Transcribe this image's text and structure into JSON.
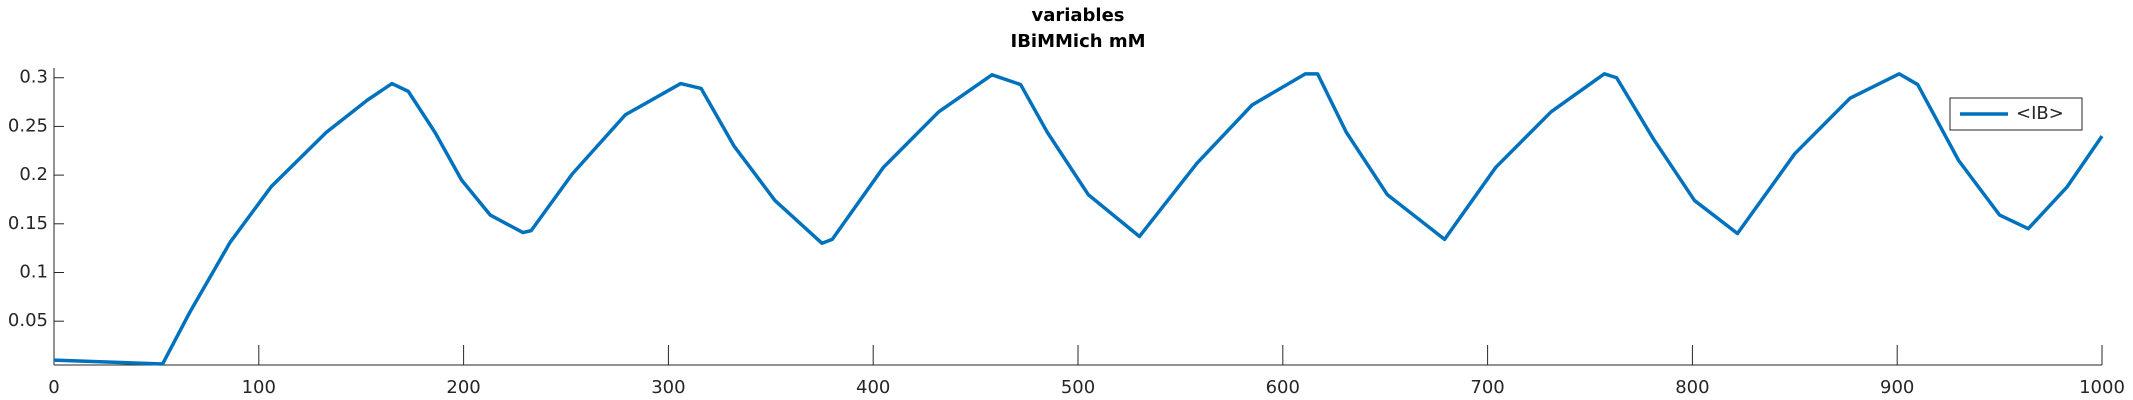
{
  "chart_data": {
    "type": "line",
    "title": "variables",
    "subtitle": "IBiMMich mM",
    "x": [
      0,
      53,
      66,
      86,
      106,
      133,
      153,
      165,
      173,
      186,
      199,
      213,
      229,
      233,
      253,
      279,
      306,
      316,
      332,
      352,
      375,
      380,
      405,
      432,
      458,
      472,
      485,
      505,
      530,
      558,
      585,
      611,
      617,
      631,
      651,
      679,
      704,
      731,
      757,
      763,
      781,
      801,
      822,
      850,
      877,
      901,
      910,
      930,
      950,
      964,
      983,
      1000
    ],
    "series": [
      {
        "name": "<IB>",
        "color": "#0072bd",
        "values": [
          0.01,
          0.006,
          0.058,
          0.131,
          0.188,
          0.244,
          0.277,
          0.294,
          0.286,
          0.244,
          0.195,
          0.159,
          0.141,
          0.143,
          0.201,
          0.262,
          0.294,
          0.289,
          0.23,
          0.174,
          0.13,
          0.134,
          0.208,
          0.265,
          0.303,
          0.293,
          0.244,
          0.18,
          0.137,
          0.212,
          0.272,
          0.304,
          0.304,
          0.244,
          0.18,
          0.134,
          0.208,
          0.265,
          0.304,
          0.3,
          0.237,
          0.174,
          0.14,
          0.222,
          0.279,
          0.304,
          0.293,
          0.215,
          0.159,
          0.145,
          0.188,
          0.24
        ]
      }
    ],
    "xlim": [
      0,
      1000
    ],
    "xticks": [
      0,
      100,
      200,
      300,
      400,
      500,
      600,
      700,
      800,
      900,
      1000
    ],
    "ylim": [
      0.005,
      0.31
    ],
    "yticks": [
      0.05,
      0.1,
      0.15,
      0.2,
      0.25,
      0.3
    ],
    "legend": "northeast"
  }
}
